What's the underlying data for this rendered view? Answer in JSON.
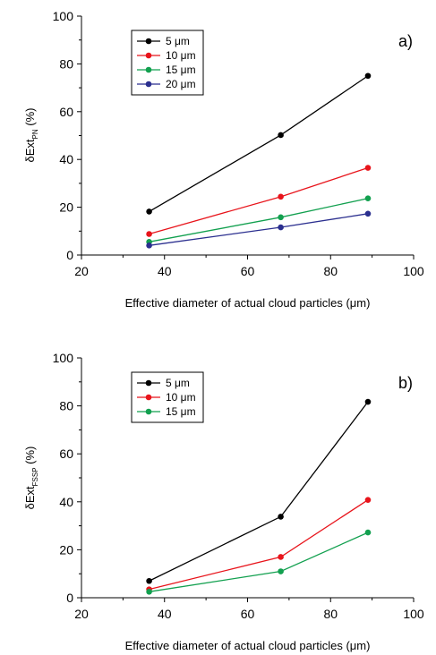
{
  "chart_data": [
    {
      "type": "line",
      "panel_label": "a)",
      "xlabel": "Effective diameter of actual cloud particles (μm)",
      "ylabel_main": "δExt",
      "ylabel_sub": "PN",
      "ylabel_unit": "(%)",
      "xlim": [
        20,
        100
      ],
      "ylim": [
        0,
        100
      ],
      "x_ticks": [
        "20",
        "40",
        "60",
        "80",
        "100"
      ],
      "y_ticks": [
        "0",
        "20",
        "40",
        "60",
        "80",
        "100"
      ],
      "grid": false,
      "legend_position": "top-left",
      "x": [
        36.3,
        68,
        89
      ],
      "series": [
        {
          "name": "5 μm",
          "color": "#000000",
          "values": [
            18.2,
            50.2,
            75
          ]
        },
        {
          "name": "10 μm",
          "color": "#e8141b",
          "values": [
            8.8,
            24.4,
            36.5
          ]
        },
        {
          "name": "15 μm",
          "color": "#12a04f",
          "values": [
            5.5,
            15.8,
            23.7
          ]
        },
        {
          "name": "20 μm",
          "color": "#2b2f8f",
          "values": [
            4,
            11.6,
            17.3
          ]
        }
      ]
    },
    {
      "type": "line",
      "panel_label": "b)",
      "xlabel": "Effective diameter of actual cloud particles (μm)",
      "ylabel_main": "δExt",
      "ylabel_sub": "FSSP",
      "ylabel_unit": "(%)",
      "xlim": [
        20,
        100
      ],
      "ylim": [
        0,
        100
      ],
      "x_ticks": [
        "20",
        "40",
        "60",
        "80",
        "100"
      ],
      "y_ticks": [
        "0",
        "20",
        "40",
        "60",
        "80",
        "100"
      ],
      "grid": false,
      "legend_position": "top-left",
      "x": [
        36.3,
        68,
        89
      ],
      "series": [
        {
          "name": "5 μm",
          "color": "#000000",
          "values": [
            7,
            33.8,
            81.7
          ]
        },
        {
          "name": "10 μm",
          "color": "#e8141b",
          "values": [
            3.5,
            17,
            40.8
          ]
        },
        {
          "name": "15 μm",
          "color": "#12a04f",
          "values": [
            2.5,
            11,
            27.2
          ]
        }
      ]
    }
  ]
}
